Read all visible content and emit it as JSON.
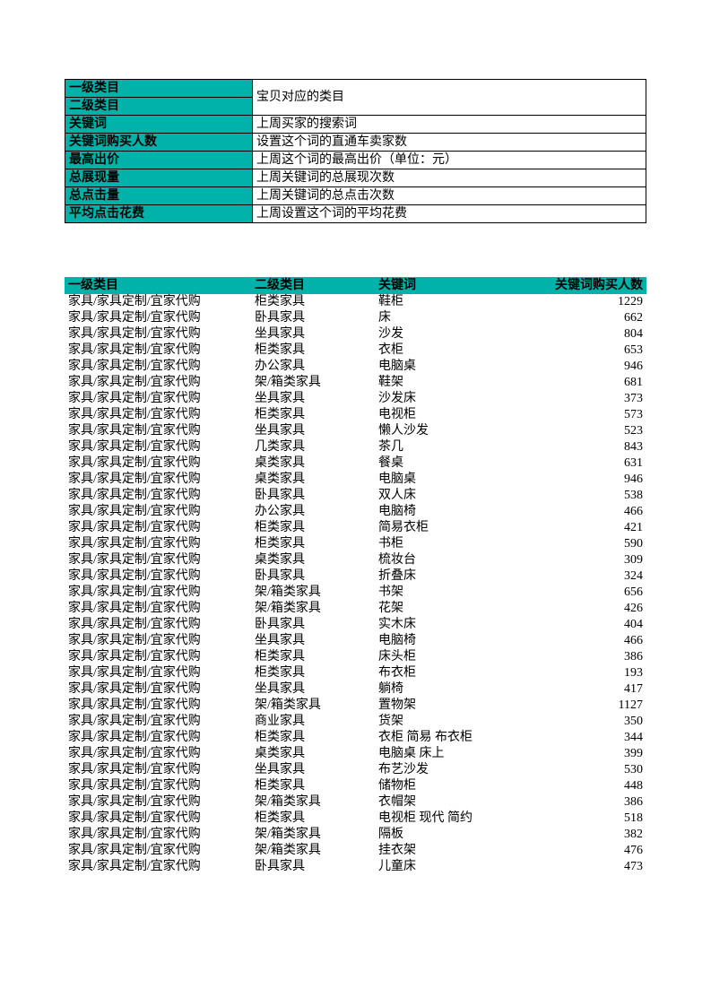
{
  "colors": {
    "header_bg": "#00b2a9",
    "border": "#000000",
    "page_bg": "#ffffff",
    "text": "#000000"
  },
  "definitions": [
    {
      "label": "一级类目",
      "value": "宝贝对应的类目",
      "rowspan_value": true
    },
    {
      "label": "二级类目",
      "value": null
    },
    {
      "label": "关键词",
      "value": "上周买家的搜索词"
    },
    {
      "label": "关键词购买人数",
      "value": "设置这个词的直通车卖家数"
    },
    {
      "label": "最高出价",
      "value": "上周这个词的最高出价（单位：元）"
    },
    {
      "label": "总展现量",
      "value": "上周关键词的总展现次数"
    },
    {
      "label": "总点击量",
      "value": "上周关键词的总点击次数"
    },
    {
      "label": "平均点击花费",
      "value": "上周设置这个词的平均花费"
    }
  ],
  "columns": [
    "一级类目",
    "二级类目",
    "关键词",
    "关键词购买人数"
  ],
  "rows": [
    [
      "家具/家具定制/宜家代购",
      "柜类家具",
      "鞋柜",
      1229
    ],
    [
      "家具/家具定制/宜家代购",
      "卧具家具",
      "床",
      662
    ],
    [
      "家具/家具定制/宜家代购",
      "坐具家具",
      "沙发",
      804
    ],
    [
      "家具/家具定制/宜家代购",
      "柜类家具",
      "衣柜",
      653
    ],
    [
      "家具/家具定制/宜家代购",
      "办公家具",
      "电脑桌",
      946
    ],
    [
      "家具/家具定制/宜家代购",
      "架/箱类家具",
      "鞋架",
      681
    ],
    [
      "家具/家具定制/宜家代购",
      "坐具家具",
      "沙发床",
      373
    ],
    [
      "家具/家具定制/宜家代购",
      "柜类家具",
      "电视柜",
      573
    ],
    [
      "家具/家具定制/宜家代购",
      "坐具家具",
      "懒人沙发",
      523
    ],
    [
      "家具/家具定制/宜家代购",
      "几类家具",
      "茶几",
      843
    ],
    [
      "家具/家具定制/宜家代购",
      "桌类家具",
      "餐桌",
      631
    ],
    [
      "家具/家具定制/宜家代购",
      "桌类家具",
      "电脑桌",
      946
    ],
    [
      "家具/家具定制/宜家代购",
      "卧具家具",
      "双人床",
      538
    ],
    [
      "家具/家具定制/宜家代购",
      "办公家具",
      "电脑椅",
      466
    ],
    [
      "家具/家具定制/宜家代购",
      "柜类家具",
      "简易衣柜",
      421
    ],
    [
      "家具/家具定制/宜家代购",
      "柜类家具",
      "书柜",
      590
    ],
    [
      "家具/家具定制/宜家代购",
      "桌类家具",
      "梳妆台",
      309
    ],
    [
      "家具/家具定制/宜家代购",
      "卧具家具",
      "折叠床",
      324
    ],
    [
      "家具/家具定制/宜家代购",
      "架/箱类家具",
      "书架",
      656
    ],
    [
      "家具/家具定制/宜家代购",
      "架/箱类家具",
      "花架",
      426
    ],
    [
      "家具/家具定制/宜家代购",
      "卧具家具",
      "实木床",
      404
    ],
    [
      "家具/家具定制/宜家代购",
      "坐具家具",
      "电脑椅",
      466
    ],
    [
      "家具/家具定制/宜家代购",
      "柜类家具",
      "床头柜",
      386
    ],
    [
      "家具/家具定制/宜家代购",
      "柜类家具",
      "布衣柜",
      193
    ],
    [
      "家具/家具定制/宜家代购",
      "坐具家具",
      "躺椅",
      417
    ],
    [
      "家具/家具定制/宜家代购",
      "架/箱类家具",
      "置物架",
      1127
    ],
    [
      "家具/家具定制/宜家代购",
      "商业家具",
      "货架",
      350
    ],
    [
      "家具/家具定制/宜家代购",
      "柜类家具",
      "衣柜 简易 布衣柜",
      344
    ],
    [
      "家具/家具定制/宜家代购",
      "桌类家具",
      "电脑桌 床上",
      399
    ],
    [
      "家具/家具定制/宜家代购",
      "坐具家具",
      "布艺沙发",
      530
    ],
    [
      "家具/家具定制/宜家代购",
      "柜类家具",
      "储物柜",
      448
    ],
    [
      "家具/家具定制/宜家代购",
      "架/箱类家具",
      "衣帽架",
      386
    ],
    [
      "家具/家具定制/宜家代购",
      "柜类家具",
      "电视柜 现代 简约",
      518
    ],
    [
      "家具/家具定制/宜家代购",
      "架/箱类家具",
      "隔板",
      382
    ],
    [
      "家具/家具定制/宜家代购",
      "架/箱类家具",
      "挂衣架",
      476
    ],
    [
      "家具/家具定制/宜家代购",
      "卧具家具",
      "儿童床",
      473
    ]
  ]
}
